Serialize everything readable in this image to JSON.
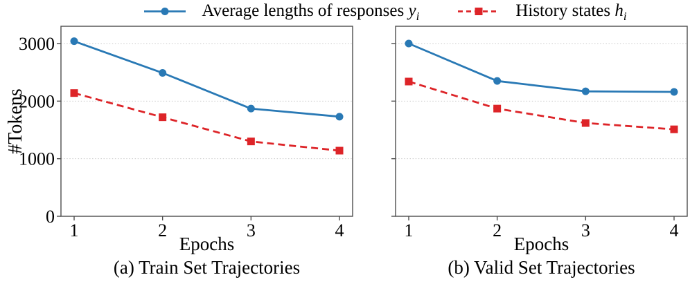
{
  "figure": {
    "background": "#ffffff",
    "frame_color": "#4d4d4d",
    "grid_color": "#c9c9c9"
  },
  "legend": {
    "entries": [
      {
        "label_text": "Average lengths of responses ",
        "math_var": "y",
        "math_sub": "i",
        "color": "#2979b5",
        "line_style": "solid",
        "marker": "circle"
      },
      {
        "label_text": "History states ",
        "math_var": "h",
        "math_sub": "i",
        "color": "#dd2428",
        "line_style": "dashed",
        "marker": "square"
      }
    ]
  },
  "chart_data": [
    {
      "type": "line",
      "title": "(a) Train Set Trajectories",
      "xlabel": "Epochs",
      "ylabel": "#Tokens",
      "x": [
        1,
        2,
        3,
        4
      ],
      "xticks": [
        1,
        2,
        3,
        4
      ],
      "yticks": [
        0,
        1000,
        2000,
        3000
      ],
      "ylim": [
        0,
        3300
      ],
      "grid": "horizontal-dotted",
      "legend_position": "top-center-outside",
      "show_ytick_labels": true,
      "series": [
        {
          "name": "Average lengths of responses y_i",
          "values": [
            3040,
            2490,
            1870,
            1730
          ],
          "color": "#2979b5",
          "line": "solid",
          "marker": "circle"
        },
        {
          "name": "History states h_i",
          "values": [
            2140,
            1720,
            1300,
            1140
          ],
          "color": "#dd2428",
          "line": "dashed",
          "marker": "square"
        }
      ]
    },
    {
      "type": "line",
      "title": "(b) Valid Set Trajectories",
      "xlabel": "Epochs",
      "ylabel": "",
      "x": [
        1,
        2,
        3,
        4
      ],
      "xticks": [
        1,
        2,
        3,
        4
      ],
      "yticks": [
        0,
        1000,
        2000,
        3000
      ],
      "ylim": [
        0,
        3300
      ],
      "grid": "horizontal-dotted",
      "show_ytick_labels": false,
      "series": [
        {
          "name": "Average lengths of responses y_i",
          "values": [
            3000,
            2350,
            2170,
            2160
          ],
          "color": "#2979b5",
          "line": "solid",
          "marker": "circle"
        },
        {
          "name": "History states h_i",
          "values": [
            2340,
            1870,
            1620,
            1510
          ],
          "color": "#dd2428",
          "line": "dashed",
          "marker": "square"
        }
      ]
    }
  ]
}
